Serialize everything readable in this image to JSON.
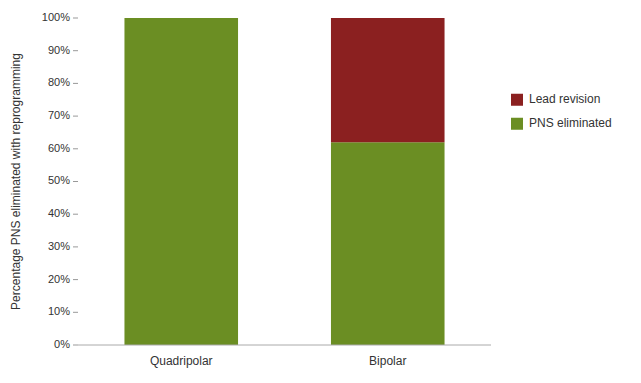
{
  "chart_data": {
    "type": "bar",
    "stacked": true,
    "categories": [
      "Quadripolar",
      "Bipolar"
    ],
    "series": [
      {
        "name": "PNS eliminated",
        "color": "#6b8e23",
        "values": [
          100,
          62
        ]
      },
      {
        "name": "Lead revision",
        "color": "#8b2020",
        "values": [
          0,
          38
        ]
      }
    ],
    "y_label": "Percentage PNS eliminated with reprogramming",
    "ylim": [
      0,
      100
    ],
    "yticks": [
      {
        "value": 0,
        "label": "0%"
      },
      {
        "value": 10,
        "label": "10%"
      },
      {
        "value": 20,
        "label": "20%"
      },
      {
        "value": 30,
        "label": "30%"
      },
      {
        "value": 40,
        "label": "40%"
      },
      {
        "value": 50,
        "label": "50%"
      },
      {
        "value": 60,
        "label": "60%"
      },
      {
        "value": 70,
        "label": "70%"
      },
      {
        "value": 80,
        "label": "80%"
      },
      {
        "value": 90,
        "label": "90%"
      },
      {
        "value": 100,
        "label": "100%"
      }
    ],
    "grid": false,
    "legend": "right"
  }
}
